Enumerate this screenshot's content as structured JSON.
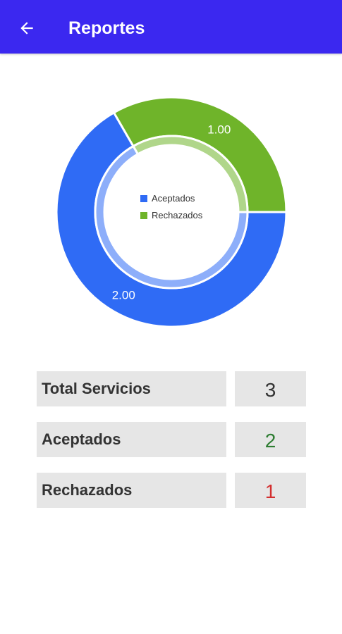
{
  "app_bar": {
    "title": "Reportes",
    "back_icon": "arrow-left-icon",
    "background": "#3B28F0"
  },
  "chart_data": {
    "type": "pie",
    "style": "donut",
    "categories": [
      "Aceptados",
      "Rechazados"
    ],
    "values": [
      2,
      1
    ],
    "value_labels": [
      "2.00",
      "1.00"
    ],
    "colors": [
      "#2F6BF5",
      "#6FB42A"
    ],
    "legend": {
      "placement": "center",
      "entries": [
        "Aceptados",
        "Rechazados"
      ]
    }
  },
  "stats": [
    {
      "label": "Total Servicios",
      "value": "3",
      "color": "#333333"
    },
    {
      "label": "Aceptados",
      "value": "2",
      "color": "#2E7D32"
    },
    {
      "label": "Rechazados",
      "value": "1",
      "color": "#D32F2F"
    }
  ]
}
